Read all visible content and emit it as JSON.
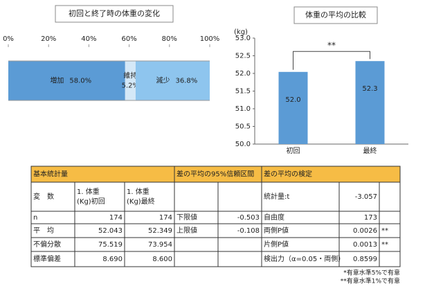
{
  "chart_data": [
    {
      "type": "stacked_barh",
      "title": "初回と終了時の体重の変化",
      "xlim": [
        0,
        100
      ],
      "xticks": [
        {
          "value": 0,
          "label": "0%"
        },
        {
          "value": 20,
          "label": "20%"
        },
        {
          "value": 40,
          "label": "40%"
        },
        {
          "value": 60,
          "label": "60%"
        },
        {
          "value": 80,
          "label": "80%"
        },
        {
          "value": 100,
          "label": "100%"
        }
      ],
      "series": [
        {
          "name": "増加",
          "color": "#5b9bd5",
          "values": [
            58.0
          ],
          "value_labels": [
            "58.0%"
          ]
        },
        {
          "name": "維持",
          "color": "#d4e8f7",
          "values": [
            5.2
          ],
          "value_labels": [
            "5.2%"
          ]
        },
        {
          "name": "減少",
          "color": "#8ec5ee",
          "values": [
            36.8
          ],
          "value_labels": [
            "36.8%"
          ]
        }
      ]
    },
    {
      "type": "bar",
      "title": "体重の平均の比較",
      "y_label": "(kg)",
      "categories": [
        "初回",
        "最終"
      ],
      "values": [
        52.043,
        52.349
      ],
      "value_labels": [
        "52.0",
        "52.3"
      ],
      "color": "#5b9bd5",
      "annotation": "**",
      "ylim": [
        50,
        53
      ],
      "yticks": [
        {
          "value": 50,
          "label": "50.0"
        },
        {
          "value": 50.5,
          "label": "50.5"
        },
        {
          "value": 51,
          "label": "51.0"
        },
        {
          "value": 51.5,
          "label": "51.5"
        },
        {
          "value": 52,
          "label": "52.0"
        },
        {
          "value": 52.5,
          "label": "52.5"
        },
        {
          "value": 53,
          "label": "53.0"
        }
      ]
    }
  ],
  "table": {
    "headers": [
      "基本統計量",
      "差の平均の95%信頼区間",
      "差の平均の検定"
    ],
    "var_label": "変　数",
    "var_names": [
      [
        "1. 体重",
        "(Kg)初回"
      ],
      [
        "1. 体重",
        "(Kg)最終"
      ]
    ],
    "stats": [
      [
        "n",
        "174",
        "174"
      ],
      [
        "平　均",
        "52.043",
        "52.349"
      ],
      [
        "不偏分散",
        "75.519",
        "73.954"
      ],
      [
        "標準偏差",
        "8.690",
        "8.600"
      ]
    ],
    "ci": [
      [
        "下限値",
        "-0.503"
      ],
      [
        "上限値",
        "-0.108"
      ]
    ],
    "test": [
      [
        "統計量:t",
        "-3.057"
      ],
      [
        "自由度",
        "173"
      ],
      [
        "両側P値",
        "0.0026",
        "**"
      ],
      [
        "片側P値",
        "0.0013",
        "**"
      ],
      [
        "検出力（α=0.05・両側）",
        "0.8599"
      ]
    ]
  },
  "footnotes": [
    "*有意水準5%で有意",
    "**有意水準1%で有意"
  ]
}
